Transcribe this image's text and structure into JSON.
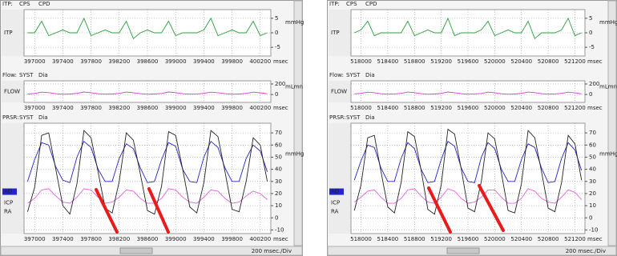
{
  "chart_data": [
    {
      "type": "line",
      "header": [
        "ITP:",
        "CPS",
        "CPD"
      ],
      "unit": "mmHg",
      "xlabel": "msec",
      "x": [
        396900,
        397000,
        397100,
        397200,
        397300,
        397400,
        397500,
        397600,
        397700,
        397800,
        397900,
        398000,
        398100,
        398200,
        398300,
        398400,
        398500,
        398600,
        398700,
        398800,
        398900,
        399000,
        399100,
        399200,
        399300,
        399400,
        399500,
        399600,
        399700,
        399800,
        399900,
        400000,
        400100,
        400200,
        400300
      ],
      "xlim": [
        396850,
        400350
      ],
      "xticks": [
        397000,
        397400,
        397800,
        398200,
        398600,
        399000,
        399400,
        399800,
        400200
      ],
      "ylim": [
        -8,
        8
      ],
      "yticks": [
        5,
        0,
        -5
      ],
      "grid": true,
      "series": [
        {
          "name": "ITP",
          "color": "#2e9e3e",
          "values": [
            0,
            0,
            4,
            -1,
            0,
            1,
            0,
            0,
            5,
            -1,
            0,
            1,
            0,
            0,
            4,
            -2,
            0,
            1,
            0,
            0,
            4,
            -1,
            0,
            0,
            0,
            1,
            5,
            -1,
            0,
            1,
            0,
            0,
            4,
            -1,
            0
          ]
        }
      ]
    },
    {
      "type": "line",
      "header": [
        "Flow:",
        "SYST",
        "Dia"
      ],
      "unit": "mLmn",
      "xlabel": "msec",
      "x": [
        396900,
        397000,
        397100,
        397200,
        397300,
        397400,
        397500,
        397600,
        397700,
        397800,
        397900,
        398000,
        398100,
        398200,
        398300,
        398400,
        398500,
        398600,
        398700,
        398800,
        398900,
        399000,
        399100,
        399200,
        399300,
        399400,
        399500,
        399600,
        399700,
        399800,
        399900,
        400000,
        400100,
        400200,
        400300
      ],
      "xlim": [
        396850,
        400350
      ],
      "xticks": [
        397000,
        397400,
        397800,
        398200,
        398600,
        399000,
        399400,
        399800,
        400200
      ],
      "ylim": [
        -150,
        260
      ],
      "yticks": [
        200,
        0
      ],
      "grid": true,
      "series": [
        {
          "name": "FLOW",
          "color": "#d040d0",
          "values": [
            10,
            20,
            45,
            35,
            15,
            5,
            10,
            22,
            48,
            34,
            14,
            6,
            9,
            21,
            46,
            33,
            15,
            5,
            10,
            20,
            47,
            36,
            16,
            6,
            11,
            22,
            45,
            34,
            15,
            5,
            10,
            21,
            44,
            32,
            14
          ]
        }
      ]
    },
    {
      "type": "line",
      "header": [
        "PRSR:",
        "SYST",
        "Dia"
      ],
      "unit": "mmHg",
      "xlabel": "msec",
      "x": [
        396900,
        397000,
        397100,
        397200,
        397300,
        397400,
        397500,
        397600,
        397700,
        397800,
        397900,
        398000,
        398100,
        398200,
        398300,
        398400,
        398500,
        398600,
        398700,
        398800,
        398900,
        399000,
        399100,
        399200,
        399300,
        399400,
        399500,
        399600,
        399700,
        399800,
        399900,
        400000,
        400100,
        400200,
        400300
      ],
      "xlim": [
        396850,
        400350
      ],
      "xticks": [
        397000,
        397400,
        397800,
        398200,
        398600,
        399000,
        399400,
        399800,
        400200
      ],
      "ylim": [
        -13,
        78
      ],
      "yticks": [
        70,
        60,
        50,
        40,
        30,
        20,
        10,
        0,
        -10
      ],
      "grid": true,
      "series": [
        {
          "name": "AO",
          "color": "#2424c8",
          "values": [
            30,
            48,
            62,
            60,
            42,
            31,
            29,
            50,
            63,
            58,
            40,
            30,
            30,
            49,
            61,
            57,
            41,
            29,
            30,
            48,
            62,
            59,
            40,
            30,
            29,
            50,
            63,
            58,
            41,
            30,
            30,
            49,
            60,
            55,
            38
          ]
        },
        {
          "name": "ICP",
          "color": "#e066e0",
          "values": [
            12,
            16,
            23,
            24,
            18,
            13,
            12,
            17,
            24,
            23,
            17,
            12,
            13,
            17,
            23,
            22,
            16,
            12,
            12,
            16,
            24,
            23,
            17,
            13,
            12,
            17,
            23,
            22,
            16,
            12,
            13,
            18,
            22,
            20,
            15
          ]
        },
        {
          "name": "RA",
          "color": "#222222",
          "values": [
            5,
            25,
            68,
            70,
            40,
            10,
            3,
            28,
            72,
            66,
            38,
            8,
            4,
            30,
            70,
            64,
            36,
            6,
            3,
            26,
            71,
            68,
            40,
            9,
            4,
            29,
            72,
            67,
            38,
            7,
            5,
            30,
            66,
            60,
            30
          ]
        }
      ]
    },
    {
      "type": "line",
      "header": [
        "ITP:",
        "CPS",
        "CPD"
      ],
      "unit": "mmHg",
      "xlabel": "msec",
      "x": [
        517900,
        518000,
        518100,
        518200,
        518300,
        518400,
        518500,
        518600,
        518700,
        518800,
        518900,
        519000,
        519100,
        519200,
        519300,
        519400,
        519500,
        519600,
        519700,
        519800,
        519900,
        520000,
        520100,
        520200,
        520300,
        520400,
        520500,
        520600,
        520700,
        520800,
        520900,
        521000,
        521100,
        521200,
        521300
      ],
      "xlim": [
        517850,
        521350
      ],
      "xticks": [
        518000,
        518400,
        518800,
        519200,
        519600,
        520000,
        520400,
        520800,
        521200
      ],
      "ylim": [
        -8,
        8
      ],
      "yticks": [
        5,
        0,
        -5
      ],
      "grid": true,
      "series": [
        {
          "name": "ITP",
          "color": "#2e9e3e",
          "values": [
            0,
            1,
            4,
            -1,
            0,
            0,
            0,
            0,
            4,
            -1,
            0,
            1,
            0,
            0,
            5,
            -1,
            0,
            0,
            0,
            1,
            4,
            -1,
            0,
            1,
            0,
            0,
            4,
            -2,
            0,
            0,
            0,
            1,
            5,
            -1,
            0
          ]
        }
      ]
    },
    {
      "type": "line",
      "header": [
        "Flow:",
        "SYST",
        "Dia"
      ],
      "unit": "mLmn",
      "xlabel": "msec",
      "x": [
        517900,
        518000,
        518100,
        518200,
        518300,
        518400,
        518500,
        518600,
        518700,
        518800,
        518900,
        519000,
        519100,
        519200,
        519300,
        519400,
        519500,
        519600,
        519700,
        519800,
        519900,
        520000,
        520100,
        520200,
        520300,
        520400,
        520500,
        520600,
        520700,
        520800,
        520900,
        521000,
        521100,
        521200,
        521300
      ],
      "xlim": [
        517850,
        521350
      ],
      "xticks": [
        518000,
        518400,
        518800,
        519200,
        519600,
        520000,
        520400,
        520800,
        521200
      ],
      "ylim": [
        -150,
        260
      ],
      "yticks": [
        200,
        0
      ],
      "grid": true,
      "series": [
        {
          "name": "FLOW",
          "color": "#d040d0",
          "values": [
            12,
            22,
            44,
            33,
            14,
            6,
            11,
            21,
            46,
            35,
            15,
            5,
            10,
            22,
            47,
            34,
            16,
            6,
            11,
            20,
            45,
            33,
            14,
            5,
            10,
            21,
            46,
            35,
            15,
            6,
            11,
            22,
            44,
            31,
            13
          ]
        }
      ]
    },
    {
      "type": "line",
      "header": [
        "PRSR:",
        "SYST",
        "Dia"
      ],
      "unit": "mmHg",
      "xlabel": "msec",
      "x": [
        517900,
        518000,
        518100,
        518200,
        518300,
        518400,
        518500,
        518600,
        518700,
        518800,
        518900,
        519000,
        519100,
        519200,
        519300,
        519400,
        519500,
        519600,
        519700,
        519800,
        519900,
        520000,
        520100,
        520200,
        520300,
        520400,
        520500,
        520600,
        520700,
        520800,
        520900,
        521000,
        521100,
        521200,
        521300
      ],
      "xlim": [
        517850,
        521350
      ],
      "xticks": [
        518000,
        518400,
        518800,
        519200,
        519600,
        520000,
        520400,
        520800,
        521200
      ],
      "ylim": [
        -13,
        78
      ],
      "yticks": [
        70,
        60,
        50,
        40,
        30,
        20,
        10,
        0,
        -10
      ],
      "grid": true,
      "series": [
        {
          "name": "AO",
          "color": "#2424c8",
          "values": [
            31,
            47,
            60,
            58,
            41,
            30,
            30,
            49,
            62,
            57,
            40,
            29,
            30,
            48,
            63,
            59,
            41,
            30,
            29,
            50,
            62,
            57,
            40,
            30,
            30,
            48,
            61,
            58,
            41,
            29,
            30,
            49,
            62,
            56,
            39
          ]
        },
        {
          "name": "ICP",
          "color": "#e066e0",
          "values": [
            13,
            17,
            22,
            23,
            17,
            12,
            12,
            16,
            23,
            24,
            18,
            13,
            12,
            17,
            24,
            22,
            16,
            12,
            13,
            17,
            23,
            23,
            17,
            12,
            12,
            16,
            24,
            22,
            16,
            13,
            12,
            17,
            23,
            21,
            15
          ]
        },
        {
          "name": "RA",
          "color": "#222222",
          "values": [
            6,
            27,
            66,
            68,
            38,
            9,
            4,
            29,
            71,
            67,
            39,
            7,
            3,
            27,
            73,
            69,
            40,
            8,
            5,
            30,
            70,
            65,
            37,
            6,
            4,
            28,
            72,
            66,
            38,
            8,
            5,
            29,
            68,
            61,
            31
          ]
        }
      ]
    }
  ],
  "status": [
    "200 msec./Div",
    "200 msec./Div"
  ]
}
